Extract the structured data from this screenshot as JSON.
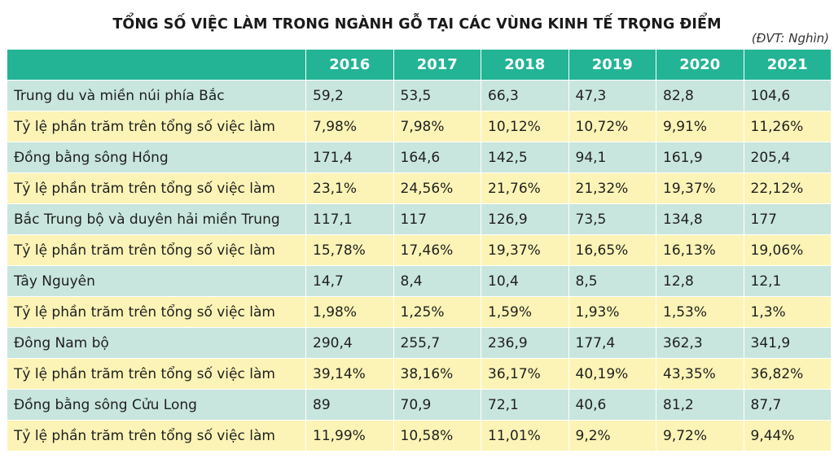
{
  "title": "TỔNG SỐ VIỆC LÀM TRONG NGÀNH GỖ TẠI CÁC VÙNG KINH TẾ TRỌNG ĐIỂM",
  "unit": "(ĐVT: Nghìn)",
  "header": {
    "years": [
      "2016",
      "2017",
      "2018",
      "2019",
      "2020",
      "2021"
    ]
  },
  "rows": [
    {
      "label": "Trung du và miền núi phía Bắc",
      "values": [
        "59,2",
        "53,5",
        "66,3",
        "47,3",
        "82,8",
        "104,6"
      ]
    },
    {
      "label": "Tỷ lệ phần trăm trên tổng số việc làm",
      "values": [
        "7,98%",
        "7,98%",
        "10,12%",
        "10,72%",
        "9,91%",
        "11,26%"
      ]
    },
    {
      "label": "Đồng bằng sông Hồng",
      "values": [
        "171,4",
        "164,6",
        "142,5",
        "94,1",
        "161,9",
        "205,4"
      ]
    },
    {
      "label": "Tỷ lệ phần trăm trên tổng số việc làm",
      "values": [
        "23,1%",
        "24,56%",
        "21,76%",
        "21,32%",
        "19,37%",
        "22,12%"
      ]
    },
    {
      "label": "Bắc Trung bộ và duyên hải miền Trung",
      "values": [
        "117,1",
        "117",
        "126,9",
        "73,5",
        "134,8",
        "177"
      ]
    },
    {
      "label": "Tỷ lệ phần trăm trên tổng số việc làm",
      "values": [
        "15,78%",
        "17,46%",
        "19,37%",
        "16,65%",
        "16,13%",
        "19,06%"
      ]
    },
    {
      "label": "Tây Nguyên",
      "values": [
        "14,7",
        "8,4",
        "10,4",
        "8,5",
        "12,8",
        "12,1"
      ]
    },
    {
      "label": "Tỷ lệ phần trăm trên tổng số việc làm",
      "values": [
        "1,98%",
        "1,25%",
        "1,59%",
        "1,93%",
        "1,53%",
        "1,3%"
      ]
    },
    {
      "label": "Đông Nam bộ",
      "values": [
        "290,4",
        "255,7",
        "236,9",
        "177,4",
        "362,3",
        "341,9"
      ]
    },
    {
      "label": "Tỷ lệ phần trăm trên tổng số việc làm",
      "values": [
        "39,14%",
        "38,16%",
        "36,17%",
        "40,19%",
        "43,35%",
        "36,82%"
      ]
    },
    {
      "label": "Đồng bằng sông Cửu Long",
      "values": [
        "89",
        "70,9",
        "72,1",
        "40,6",
        "81,2",
        "87,7"
      ]
    },
    {
      "label": "Tỷ lệ phần trăm trên tổng số việc làm",
      "values": [
        "11,99%",
        "10,58%",
        "11,01%",
        "9,2%",
        "9,72%",
        "9,44%"
      ]
    }
  ],
  "colors": {
    "header": "#22b495",
    "region_row": "#c8e6dd",
    "percent_row": "#fbf4b6"
  }
}
